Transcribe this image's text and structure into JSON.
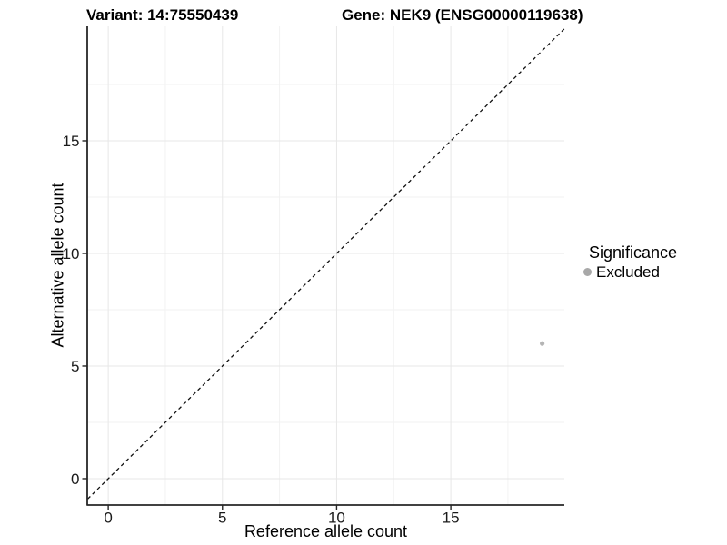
{
  "figure": {
    "title_left": "Variant: 14:75550439",
    "title_right": "Gene: NEK9 (ENSG00000119638)"
  },
  "chart_data": {
    "type": "scatter",
    "title": "Variant: 14:75550439 — Gene: NEK9 (ENSG00000119638)",
    "xlabel": "Reference allele count",
    "ylabel": "Alternative allele count",
    "xlim": [
      -0.9,
      19.97
    ],
    "ylim": [
      -1.15,
      20.08
    ],
    "x_ticks": {
      "values": [
        0,
        5,
        10,
        15
      ],
      "labels": [
        "0",
        "5",
        "10",
        "15"
      ]
    },
    "y_ticks": {
      "values": [
        0,
        5,
        10,
        15
      ],
      "labels": [
        "0",
        "5",
        "10",
        "15"
      ]
    },
    "minor_breaks": [
      2.5,
      7.5,
      12.5,
      17.5
    ],
    "grid": true,
    "identity_line": {
      "slope": 1,
      "intercept": 0,
      "dashed": true
    },
    "points": [
      {
        "x": 19,
        "y": 6,
        "category": "Excluded"
      }
    ],
    "legend": {
      "title": "Significance",
      "position": "right",
      "items": [
        {
          "label": "Excluded",
          "color": "#a8a8a8"
        }
      ]
    },
    "colors": {
      "point": "#b5b5b5",
      "axis": "#262626",
      "grid_major": "#e7e7e7",
      "grid_minor": "#f2f2f2",
      "identity_line": "#111111",
      "tick_label": "#1a1a1a"
    }
  }
}
